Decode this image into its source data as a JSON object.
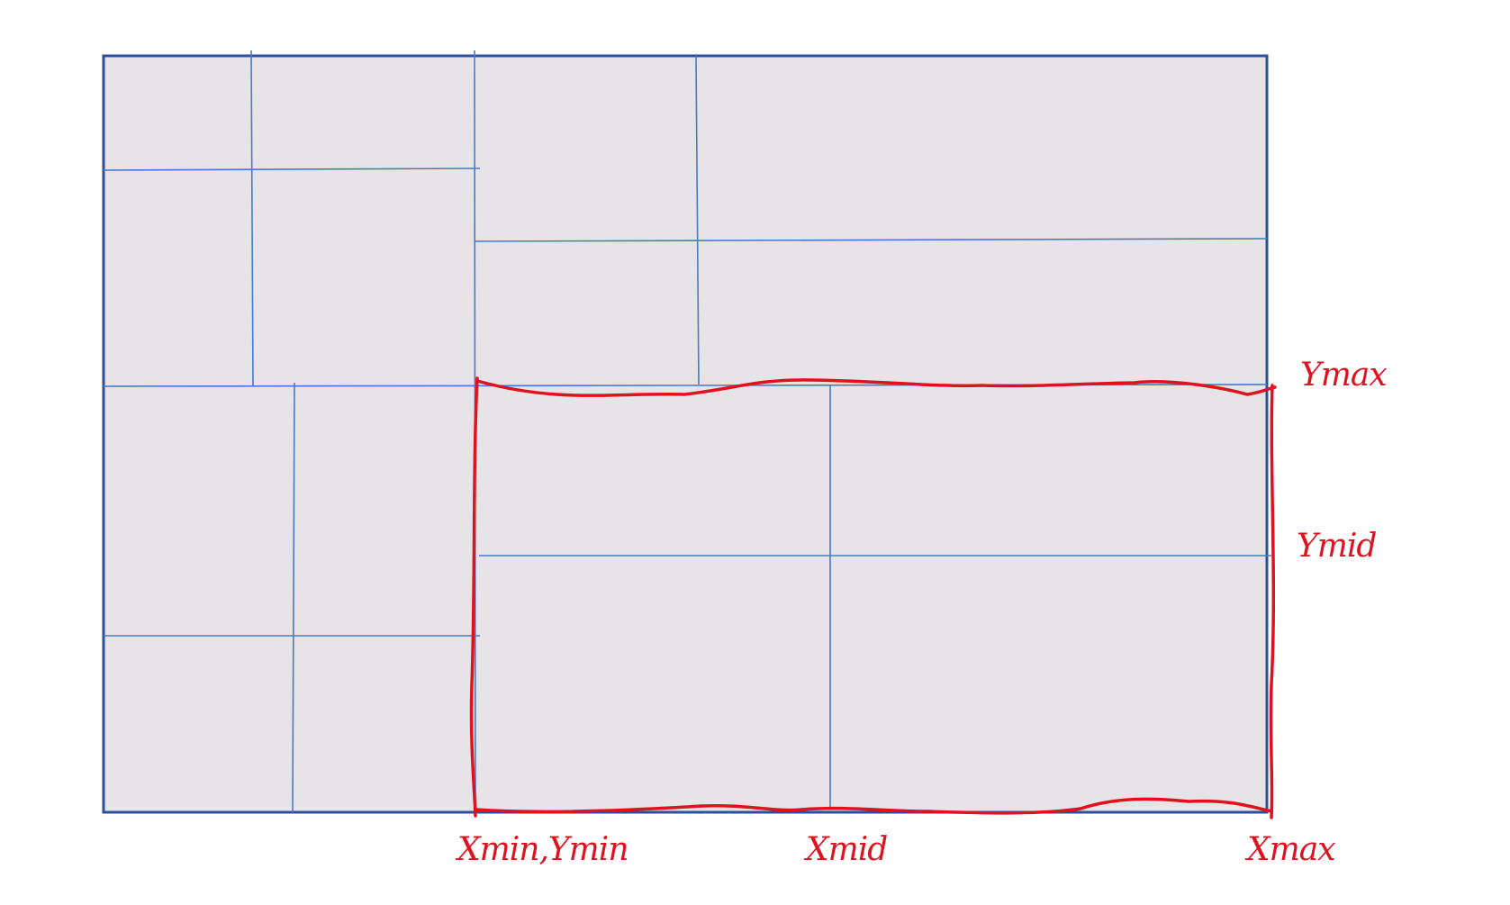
{
  "diagram": {
    "colors": {
      "background": "#ffffff",
      "panel_fill": "#e6e4e6",
      "panel_border": "#2f4f99",
      "grid_line": "#4a78cc",
      "highlight": "#e0121f",
      "label": "#e0121f"
    },
    "labels": {
      "xmin_ymin": "Xmin,Ymin",
      "xmid": "Xmid",
      "xmax": "Xmax",
      "ymax": "Ymax",
      "ymid": "Ymid"
    }
  }
}
